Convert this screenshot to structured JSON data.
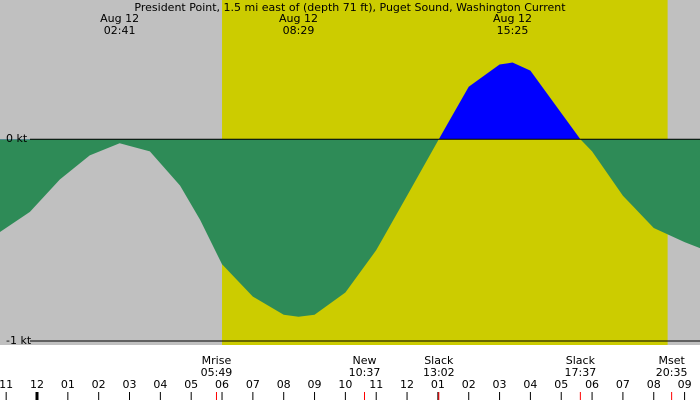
{
  "chart_data": {
    "type": "area",
    "title": "President Point, 1.5 mi east of (depth 71 ft), Puget Sound, Washington Current",
    "x": [
      -1.2,
      -0.23,
      0.74,
      1.71,
      2.68,
      3.66,
      4.64,
      5.29,
      6,
      7,
      8,
      8.48,
      9,
      10,
      11,
      12,
      13.03,
      14,
      15,
      15.42,
      16,
      17,
      17.62,
      18,
      19,
      20,
      21,
      21.5
    ],
    "values": [
      -0.46,
      -0.36,
      -0.2,
      -0.08,
      -0.02,
      -0.06,
      -0.23,
      -0.4,
      -0.62,
      -0.78,
      -0.87,
      -0.88,
      -0.87,
      -0.76,
      -0.55,
      -0.28,
      0,
      0.26,
      0.37,
      0.38,
      0.34,
      0.13,
      0,
      -0.06,
      -0.28,
      -0.44,
      -0.51,
      -0.54
    ],
    "colors": {
      "ebb": "#0000ff",
      "flood": "#2e8b57",
      "night": "#c0c0c0",
      "day": "#cccc00"
    },
    "daylight": [
      6.0,
      20.45
    ],
    "xlim": [
      -1.2,
      21.5
    ],
    "ylim": [
      -1.02,
      0.69
    ],
    "yticks": [
      {
        "value": 0,
        "label": "0 kt"
      },
      {
        "value": -1,
        "label": "-1 kt"
      }
    ],
    "xticks": [
      {
        "value": -1,
        "label": "11"
      },
      {
        "value": 0,
        "label": "12"
      },
      {
        "value": 1,
        "label": "01"
      },
      {
        "value": 2,
        "label": "02"
      },
      {
        "value": 3,
        "label": "03"
      },
      {
        "value": 4,
        "label": "04"
      },
      {
        "value": 5,
        "label": "05"
      },
      {
        "value": 6,
        "label": "06"
      },
      {
        "value": 7,
        "label": "07"
      },
      {
        "value": 8,
        "label": "08"
      },
      {
        "value": 9,
        "label": "09"
      },
      {
        "value": 10,
        "label": "10"
      },
      {
        "value": 11,
        "label": "11"
      },
      {
        "value": 12,
        "label": "12"
      },
      {
        "value": 13,
        "label": "01"
      },
      {
        "value": 14,
        "label": "02"
      },
      {
        "value": 15,
        "label": "03"
      },
      {
        "value": 16,
        "label": "04"
      },
      {
        "value": 17,
        "label": "05"
      },
      {
        "value": 18,
        "label": "06"
      },
      {
        "value": 19,
        "label": "07"
      },
      {
        "value": 20,
        "label": "08"
      },
      {
        "value": 21,
        "label": "09"
      }
    ],
    "top_labels": [
      {
        "date": "Aug 12",
        "time": "02:41",
        "x": 2.68
      },
      {
        "date": "Aug 12",
        "time": "08:29",
        "x": 8.48
      },
      {
        "date": "Aug 12",
        "time": "15:25",
        "x": 15.42
      }
    ],
    "bottom_labels": [
      {
        "name": "Mrise",
        "time": "05:49",
        "x": 5.82
      },
      {
        "name": "New",
        "time": "10:37",
        "x": 10.62
      },
      {
        "name": "Slack",
        "time": "13:02",
        "x": 13.03
      },
      {
        "name": "Slack",
        "time": "17:37",
        "x": 17.62
      },
      {
        "name": "Mset",
        "time": "20:35",
        "x": 20.58
      }
    ]
  }
}
